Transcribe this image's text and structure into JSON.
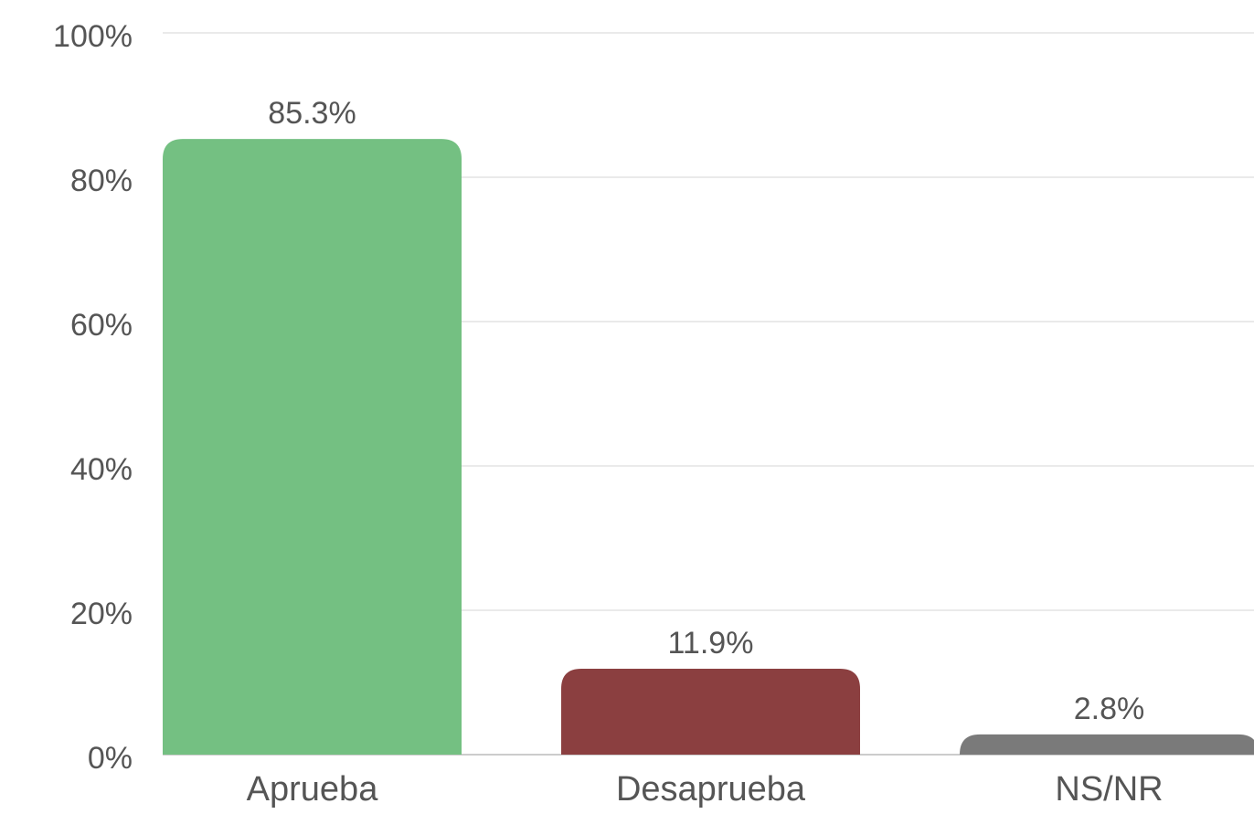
{
  "chart_data": {
    "type": "bar",
    "categories": [
      "Aprueba",
      "Desaprueba",
      "NS/NR"
    ],
    "values": [
      85.3,
      11.9,
      2.8
    ],
    "value_labels": [
      "85.3%",
      "11.9%",
      "2.8%"
    ],
    "colors": [
      "#74c082",
      "#8b3f40",
      "#7a7a7a"
    ],
    "ylim": [
      0,
      100
    ],
    "yticks": [
      {
        "value": 0,
        "label": "0%"
      },
      {
        "value": 20,
        "label": "20%"
      },
      {
        "value": 40,
        "label": "40%"
      },
      {
        "value": 60,
        "label": "60%"
      },
      {
        "value": 80,
        "label": "80%"
      },
      {
        "value": 100,
        "label": "100%"
      }
    ],
    "grid": true
  }
}
